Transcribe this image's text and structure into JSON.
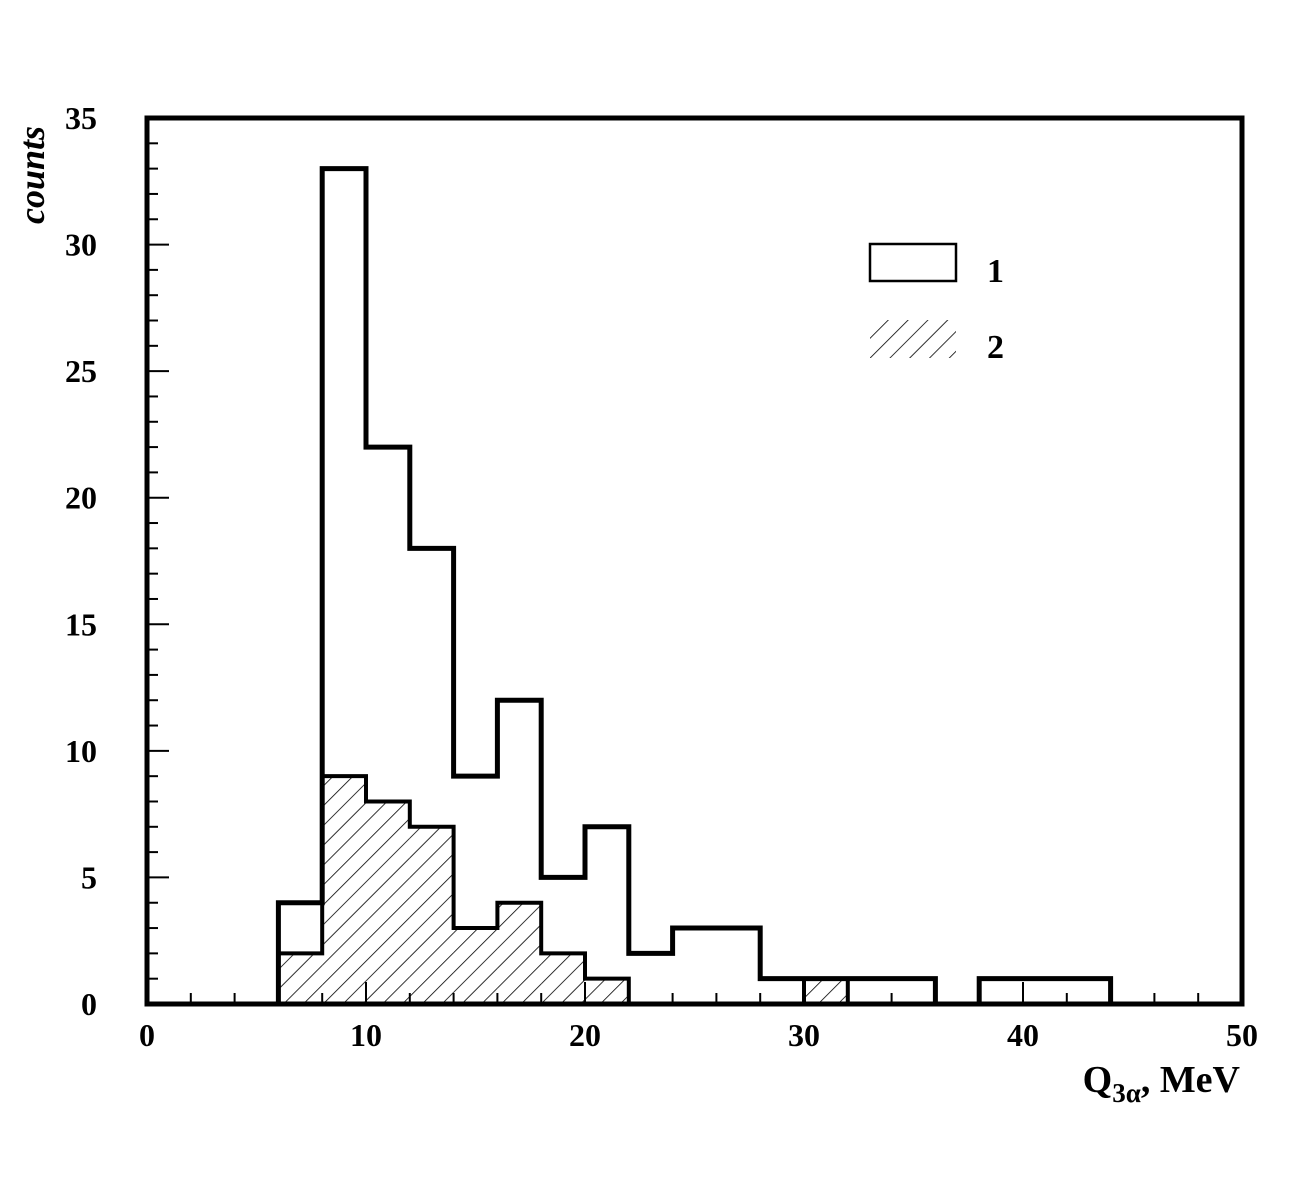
{
  "chart_data": {
    "type": "bar",
    "title": "",
    "xlabel_main": "Q",
    "xlabel_sub": "3α",
    "xlabel_rest": ", MeV",
    "ylabel": "counts",
    "xlim": [
      0,
      50
    ],
    "ylim": [
      0,
      35
    ],
    "grid": false,
    "legend_position": "top-right",
    "x_ticks": [
      "0",
      "10",
      "20",
      "30",
      "40",
      "50"
    ],
    "y_ticks": [
      "0",
      "5",
      "10",
      "15",
      "20",
      "25",
      "30",
      "35"
    ],
    "bin_edges": [
      0,
      2,
      4,
      6,
      8,
      10,
      12,
      14,
      16,
      18,
      20,
      22,
      24,
      26,
      28,
      30,
      32,
      34,
      36,
      38,
      40,
      42,
      44,
      46,
      48,
      50
    ],
    "series": [
      {
        "name": "1",
        "style": "open",
        "values": [
          0,
          0,
          0,
          4,
          33,
          22,
          18,
          9,
          12,
          5,
          7,
          2,
          3,
          3,
          1,
          1,
          1,
          1,
          0,
          1,
          1,
          1,
          0,
          0,
          0
        ]
      },
      {
        "name": "2",
        "style": "hatched",
        "values": [
          0,
          0,
          0,
          2,
          9,
          8,
          7,
          3,
          4,
          2,
          1,
          0,
          0,
          0,
          0,
          1,
          0,
          0,
          0,
          0,
          0,
          0,
          0,
          0,
          0
        ]
      }
    ]
  }
}
